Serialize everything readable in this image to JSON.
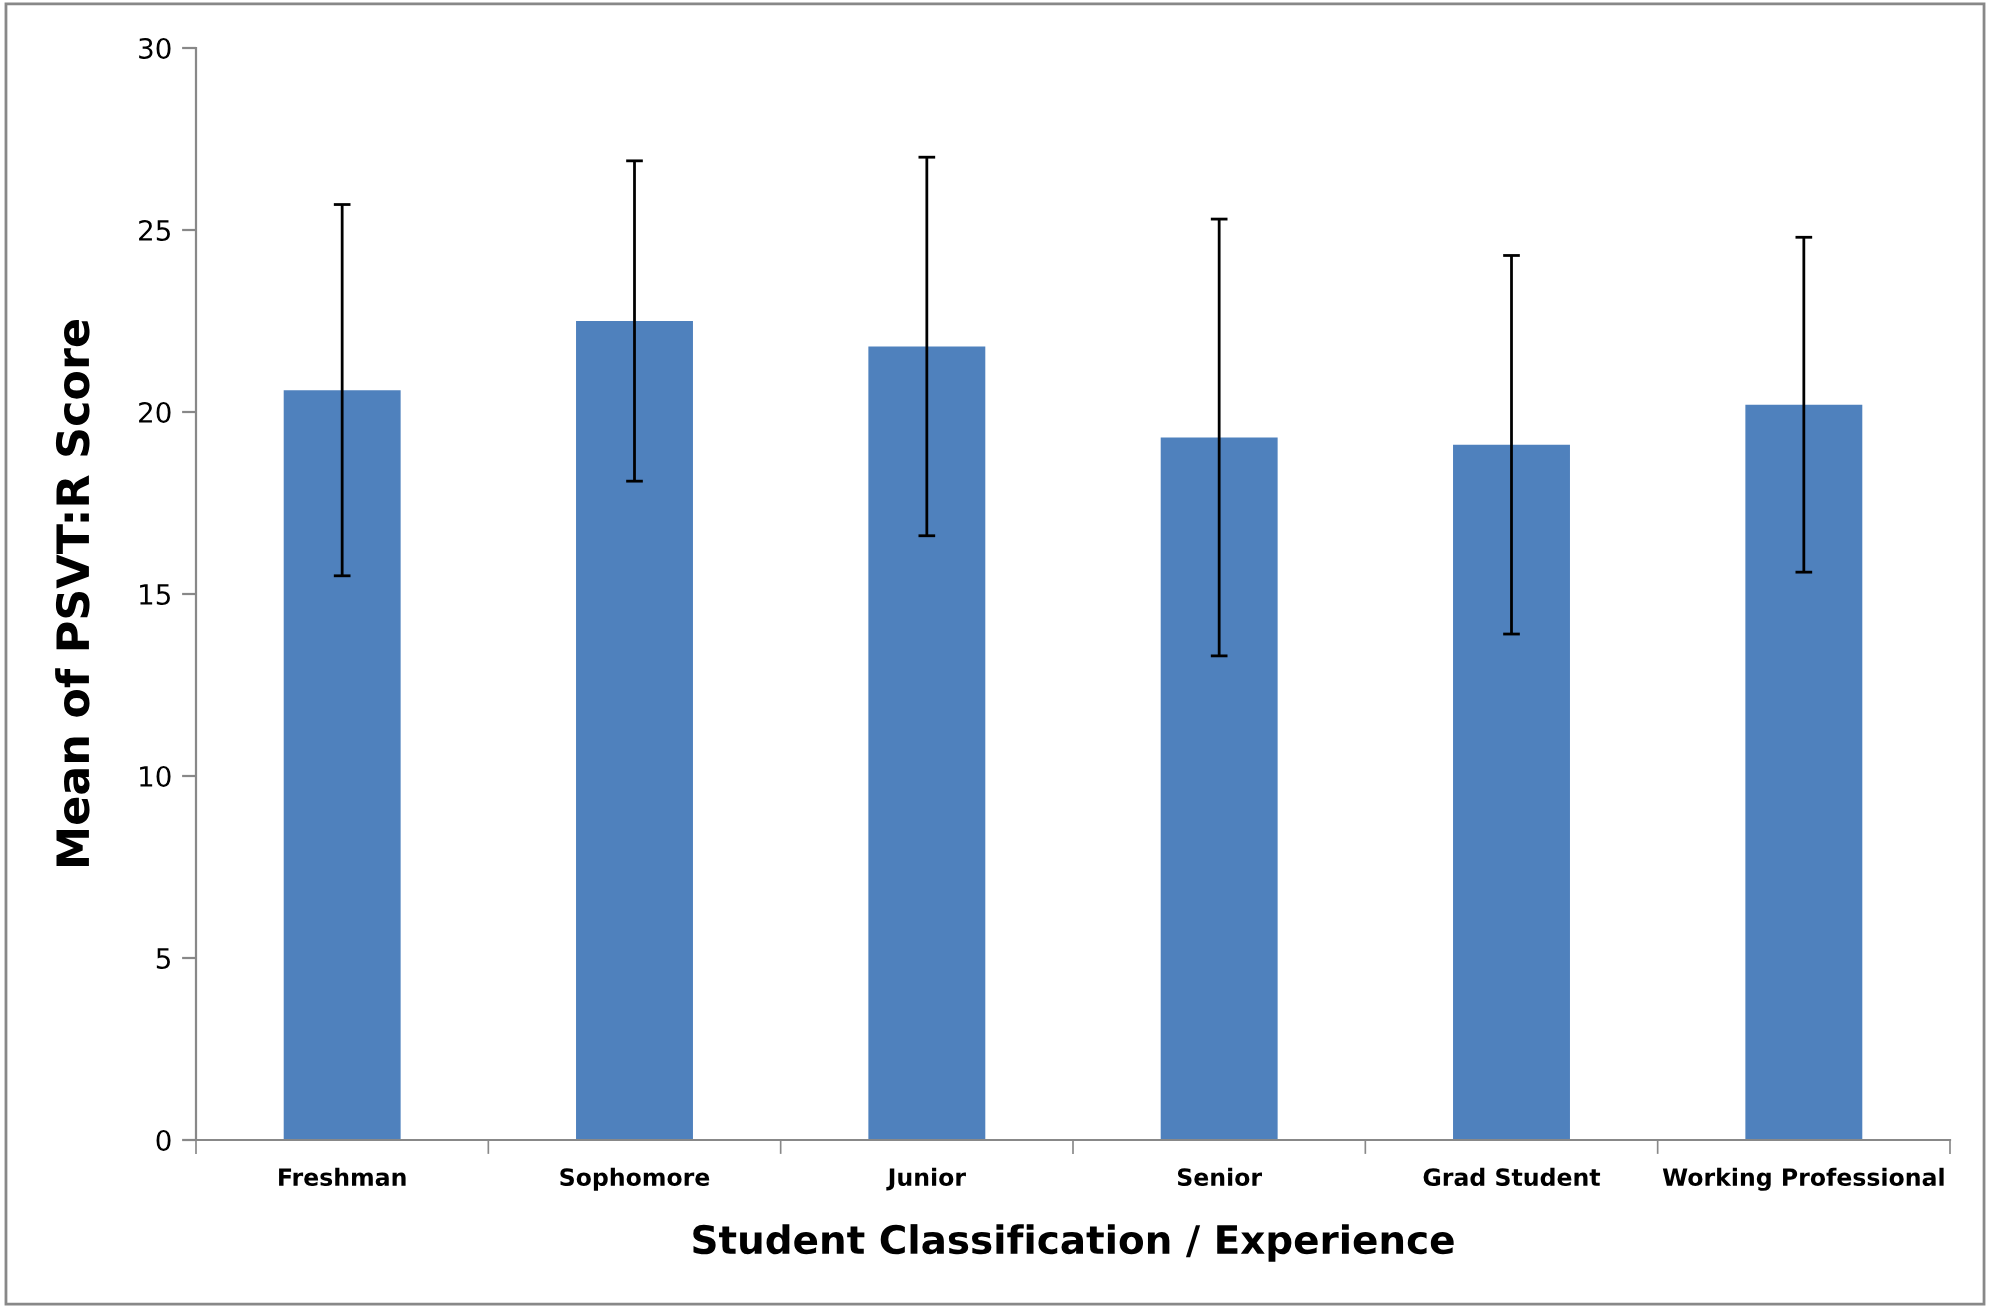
{
  "chart_data": {
    "type": "bar",
    "xlabel": "Student Classification / Experience",
    "ylabel": "Mean of PSVT:R Score",
    "categories": [
      "Freshman",
      "Sophomore",
      "Junior",
      "Senior",
      "Grad Student",
      "Working Professional"
    ],
    "values": [
      20.6,
      22.5,
      21.8,
      19.3,
      19.1,
      20.2
    ],
    "errors": [
      5.1,
      4.4,
      5.2,
      6.0,
      5.2,
      4.6
    ],
    "color": "#4f81bd",
    "ylim": [
      0,
      30
    ],
    "yticks": [
      0,
      5,
      10,
      15,
      20,
      25,
      30
    ],
    "grid": false,
    "legend": false
  }
}
